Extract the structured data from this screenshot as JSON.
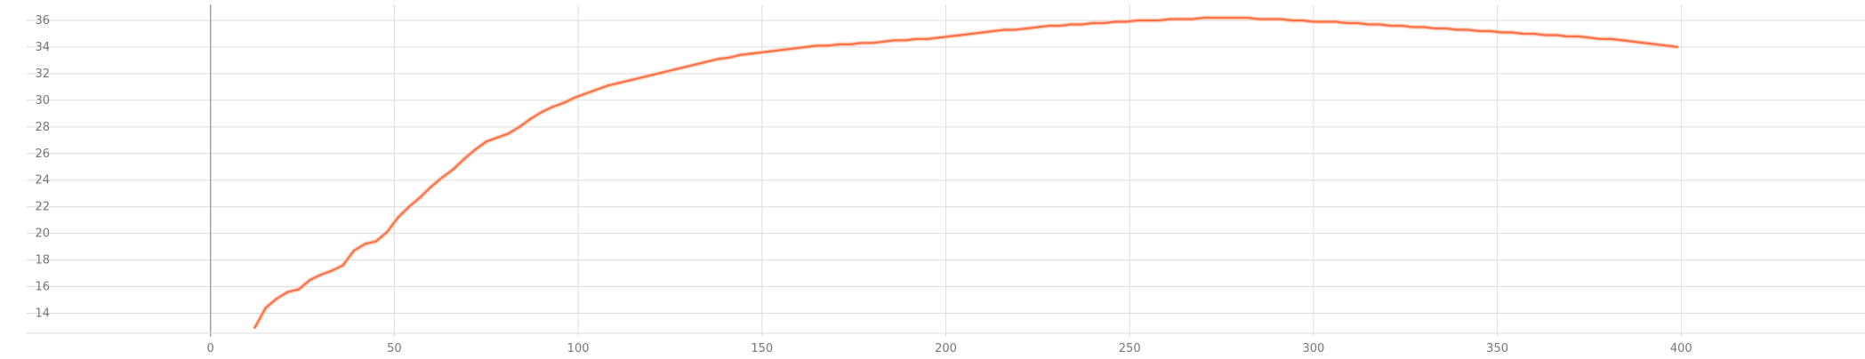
{
  "chart_data": {
    "type": "line",
    "title": "",
    "xlabel": "",
    "ylabel": "",
    "xlim": [
      -50,
      450
    ],
    "ylim": [
      12.5,
      37.2
    ],
    "x_ticks": [
      0,
      50,
      100,
      150,
      200,
      250,
      300,
      350,
      400
    ],
    "x_tick_labels": [
      "0",
      "50",
      "100",
      "150",
      "200",
      "250",
      "300",
      "350",
      "400"
    ],
    "y_ticks": [
      14,
      16,
      18,
      20,
      22,
      24,
      26,
      28,
      30,
      32,
      34,
      36
    ],
    "y_tick_labels": [
      "14",
      "16",
      "18",
      "20",
      "22",
      "24",
      "26",
      "28",
      "30",
      "32",
      "34",
      "36"
    ],
    "grid": true,
    "colors": {
      "smoothed": "#ff7043",
      "raw": "#ffc6b3",
      "grid": "#dddddd",
      "zero_line": "#a0a0a0"
    },
    "series": [
      {
        "role": "smoothed",
        "x": [
          12,
          15,
          18,
          21,
          24,
          27,
          30,
          33,
          36,
          39,
          42,
          45,
          48,
          51,
          54,
          57,
          60,
          63,
          66,
          69,
          72,
          75,
          78,
          81,
          84,
          87,
          90,
          93,
          96,
          99,
          102,
          105,
          108,
          111,
          114,
          117,
          120,
          123,
          126,
          129,
          132,
          135,
          138,
          141,
          144,
          147,
          150,
          153,
          156,
          159,
          162,
          165,
          168,
          171,
          174,
          177,
          180,
          183,
          186,
          189,
          192,
          195,
          198,
          201,
          204,
          207,
          210,
          213,
          216,
          219,
          222,
          225,
          228,
          231,
          234,
          237,
          240,
          243,
          246,
          249,
          252,
          255,
          258,
          261,
          264,
          267,
          270,
          273,
          276,
          279,
          282,
          285,
          288,
          291,
          294,
          297,
          300,
          303,
          306,
          309,
          312,
          315,
          318,
          321,
          324,
          327,
          330,
          333,
          336,
          339,
          342,
          345,
          348,
          351,
          354,
          357,
          360,
          363,
          366,
          369,
          372,
          375,
          378,
          381,
          384,
          387,
          390,
          393,
          396,
          399
        ],
        "values": [
          12.9,
          14.4,
          15.1,
          15.6,
          15.8,
          16.5,
          16.9,
          17.2,
          17.6,
          18.7,
          19.2,
          19.4,
          20.1,
          21.2,
          22.0,
          22.7,
          23.5,
          24.2,
          24.8,
          25.6,
          26.3,
          26.9,
          27.2,
          27.5,
          28.0,
          28.6,
          29.1,
          29.5,
          29.8,
          30.2,
          30.5,
          30.8,
          31.1,
          31.3,
          31.5,
          31.7,
          31.9,
          32.1,
          32.3,
          32.5,
          32.7,
          32.9,
          33.1,
          33.2,
          33.4,
          33.5,
          33.6,
          33.7,
          33.8,
          33.9,
          34.0,
          34.1,
          34.1,
          34.2,
          34.2,
          34.3,
          34.3,
          34.4,
          34.5,
          34.5,
          34.6,
          34.6,
          34.7,
          34.8,
          34.9,
          35.0,
          35.1,
          35.2,
          35.3,
          35.3,
          35.4,
          35.5,
          35.6,
          35.6,
          35.7,
          35.7,
          35.8,
          35.8,
          35.9,
          35.9,
          36.0,
          36.0,
          36.0,
          36.1,
          36.1,
          36.1,
          36.2,
          36.2,
          36.2,
          36.2,
          36.2,
          36.1,
          36.1,
          36.1,
          36.0,
          36.0,
          35.9,
          35.9,
          35.9,
          35.8,
          35.8,
          35.7,
          35.7,
          35.6,
          35.6,
          35.5,
          35.5,
          35.4,
          35.4,
          35.3,
          35.3,
          35.2,
          35.2,
          35.1,
          35.1,
          35.0,
          35.0,
          34.9,
          34.9,
          34.8,
          34.8,
          34.7,
          34.6,
          34.6,
          34.5,
          34.4,
          34.3,
          34.2,
          34.1,
          34.0
        ]
      }
    ]
  }
}
